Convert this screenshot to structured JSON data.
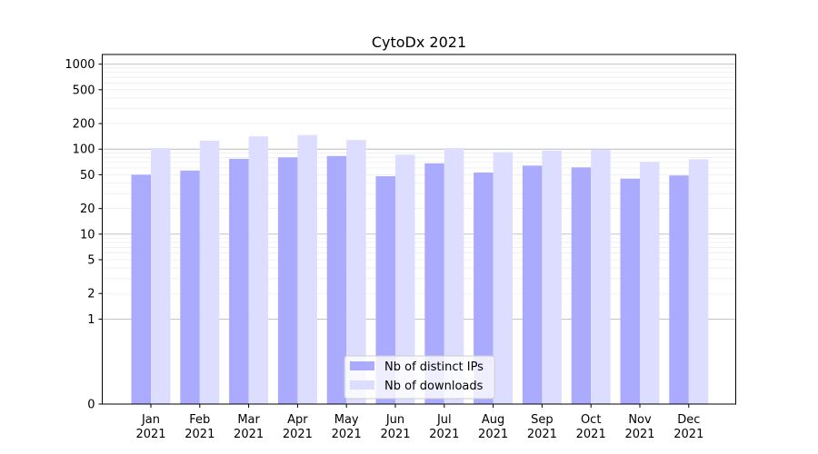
{
  "chart_data": {
    "type": "bar",
    "title": "CytoDx 2021",
    "xlabel": "",
    "ylabel": "",
    "y_scale": "symlog",
    "ylim": [
      0,
      1300
    ],
    "y_ticks": [
      0,
      1,
      2,
      5,
      10,
      20,
      50,
      100,
      200,
      500,
      1000
    ],
    "grid": true,
    "legend_position": "lower-center",
    "categories": [
      "Jan\n2021",
      "Feb\n2021",
      "Mar\n2021",
      "Apr\n2021",
      "May\n2021",
      "Jun\n2021",
      "Jul\n2021",
      "Aug\n2021",
      "Sep\n2021",
      "Oct\n2021",
      "Nov\n2021",
      "Dec\n2021"
    ],
    "series": [
      {
        "name": "Nb of distinct IPs",
        "color": "#aaaaff",
        "values": [
          50,
          56,
          77,
          80,
          83,
          48,
          68,
          53,
          64,
          61,
          45,
          49
        ]
      },
      {
        "name": "Nb of downloads",
        "color": "#ddddff",
        "values": [
          103,
          126,
          141,
          147,
          128,
          86,
          103,
          92,
          96,
          99,
          71,
          76
        ]
      }
    ]
  }
}
